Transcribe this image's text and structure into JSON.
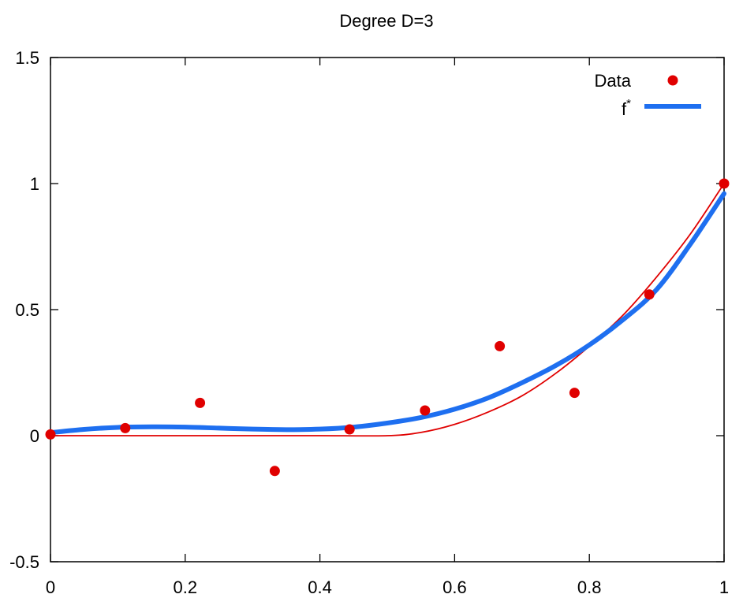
{
  "chart_data": {
    "type": "scatter",
    "title": "Degree D=3",
    "xlabel": "",
    "ylabel": "",
    "xlim": [
      0,
      1
    ],
    "ylim": [
      -0.5,
      1.5
    ],
    "xticks": [
      0,
      0.2,
      0.4,
      0.6,
      0.8,
      1
    ],
    "xtick_labels": [
      "0",
      "0.2",
      "0.4",
      "0.6",
      "0.8",
      "1"
    ],
    "yticks": [
      -0.5,
      0,
      0.5,
      1,
      1.5
    ],
    "ytick_labels": [
      "-0.5",
      "0",
      "0.5",
      "1",
      "1.5"
    ],
    "grid": false,
    "legend_position": "top-right",
    "series": [
      {
        "name": "Data",
        "kind": "points",
        "color": "#e00000",
        "x": [
          0.0,
          0.111,
          0.222,
          0.333,
          0.444,
          0.556,
          0.667,
          0.778,
          0.889,
          1.0
        ],
        "y": [
          0.005,
          0.03,
          0.13,
          -0.14,
          0.025,
          0.1,
          0.355,
          0.17,
          0.56,
          1.0
        ]
      },
      {
        "name": "f*",
        "kind": "line",
        "color": "#1e6ff0",
        "x": [
          0.0,
          0.05,
          0.1,
          0.15,
          0.2,
          0.25,
          0.3,
          0.35,
          0.4,
          0.45,
          0.5,
          0.55,
          0.6,
          0.65,
          0.7,
          0.75,
          0.8,
          0.85,
          0.9,
          0.95,
          1.0
        ],
        "y": [
          0.012,
          0.025,
          0.033,
          0.035,
          0.034,
          0.03,
          0.026,
          0.024,
          0.026,
          0.034,
          0.05,
          0.072,
          0.105,
          0.15,
          0.21,
          0.278,
          0.36,
          0.46,
          0.58,
          0.76,
          0.96
        ]
      },
      {
        "name": "",
        "kind": "line",
        "color": "#e00000",
        "x": [
          0.0,
          0.1,
          0.2,
          0.3,
          0.4,
          0.5,
          0.55,
          0.6,
          0.65,
          0.7,
          0.75,
          0.8,
          0.85,
          0.9,
          0.95,
          1.0
        ],
        "y": [
          0,
          0,
          0,
          0,
          0,
          0,
          0.013,
          0.045,
          0.094,
          0.158,
          0.247,
          0.355,
          0.478,
          0.63,
          0.8,
          1.0
        ]
      }
    ],
    "legend": [
      {
        "label": "Data",
        "series": 0
      },
      {
        "label": "f",
        "superscript": "*",
        "series": 1
      }
    ]
  }
}
